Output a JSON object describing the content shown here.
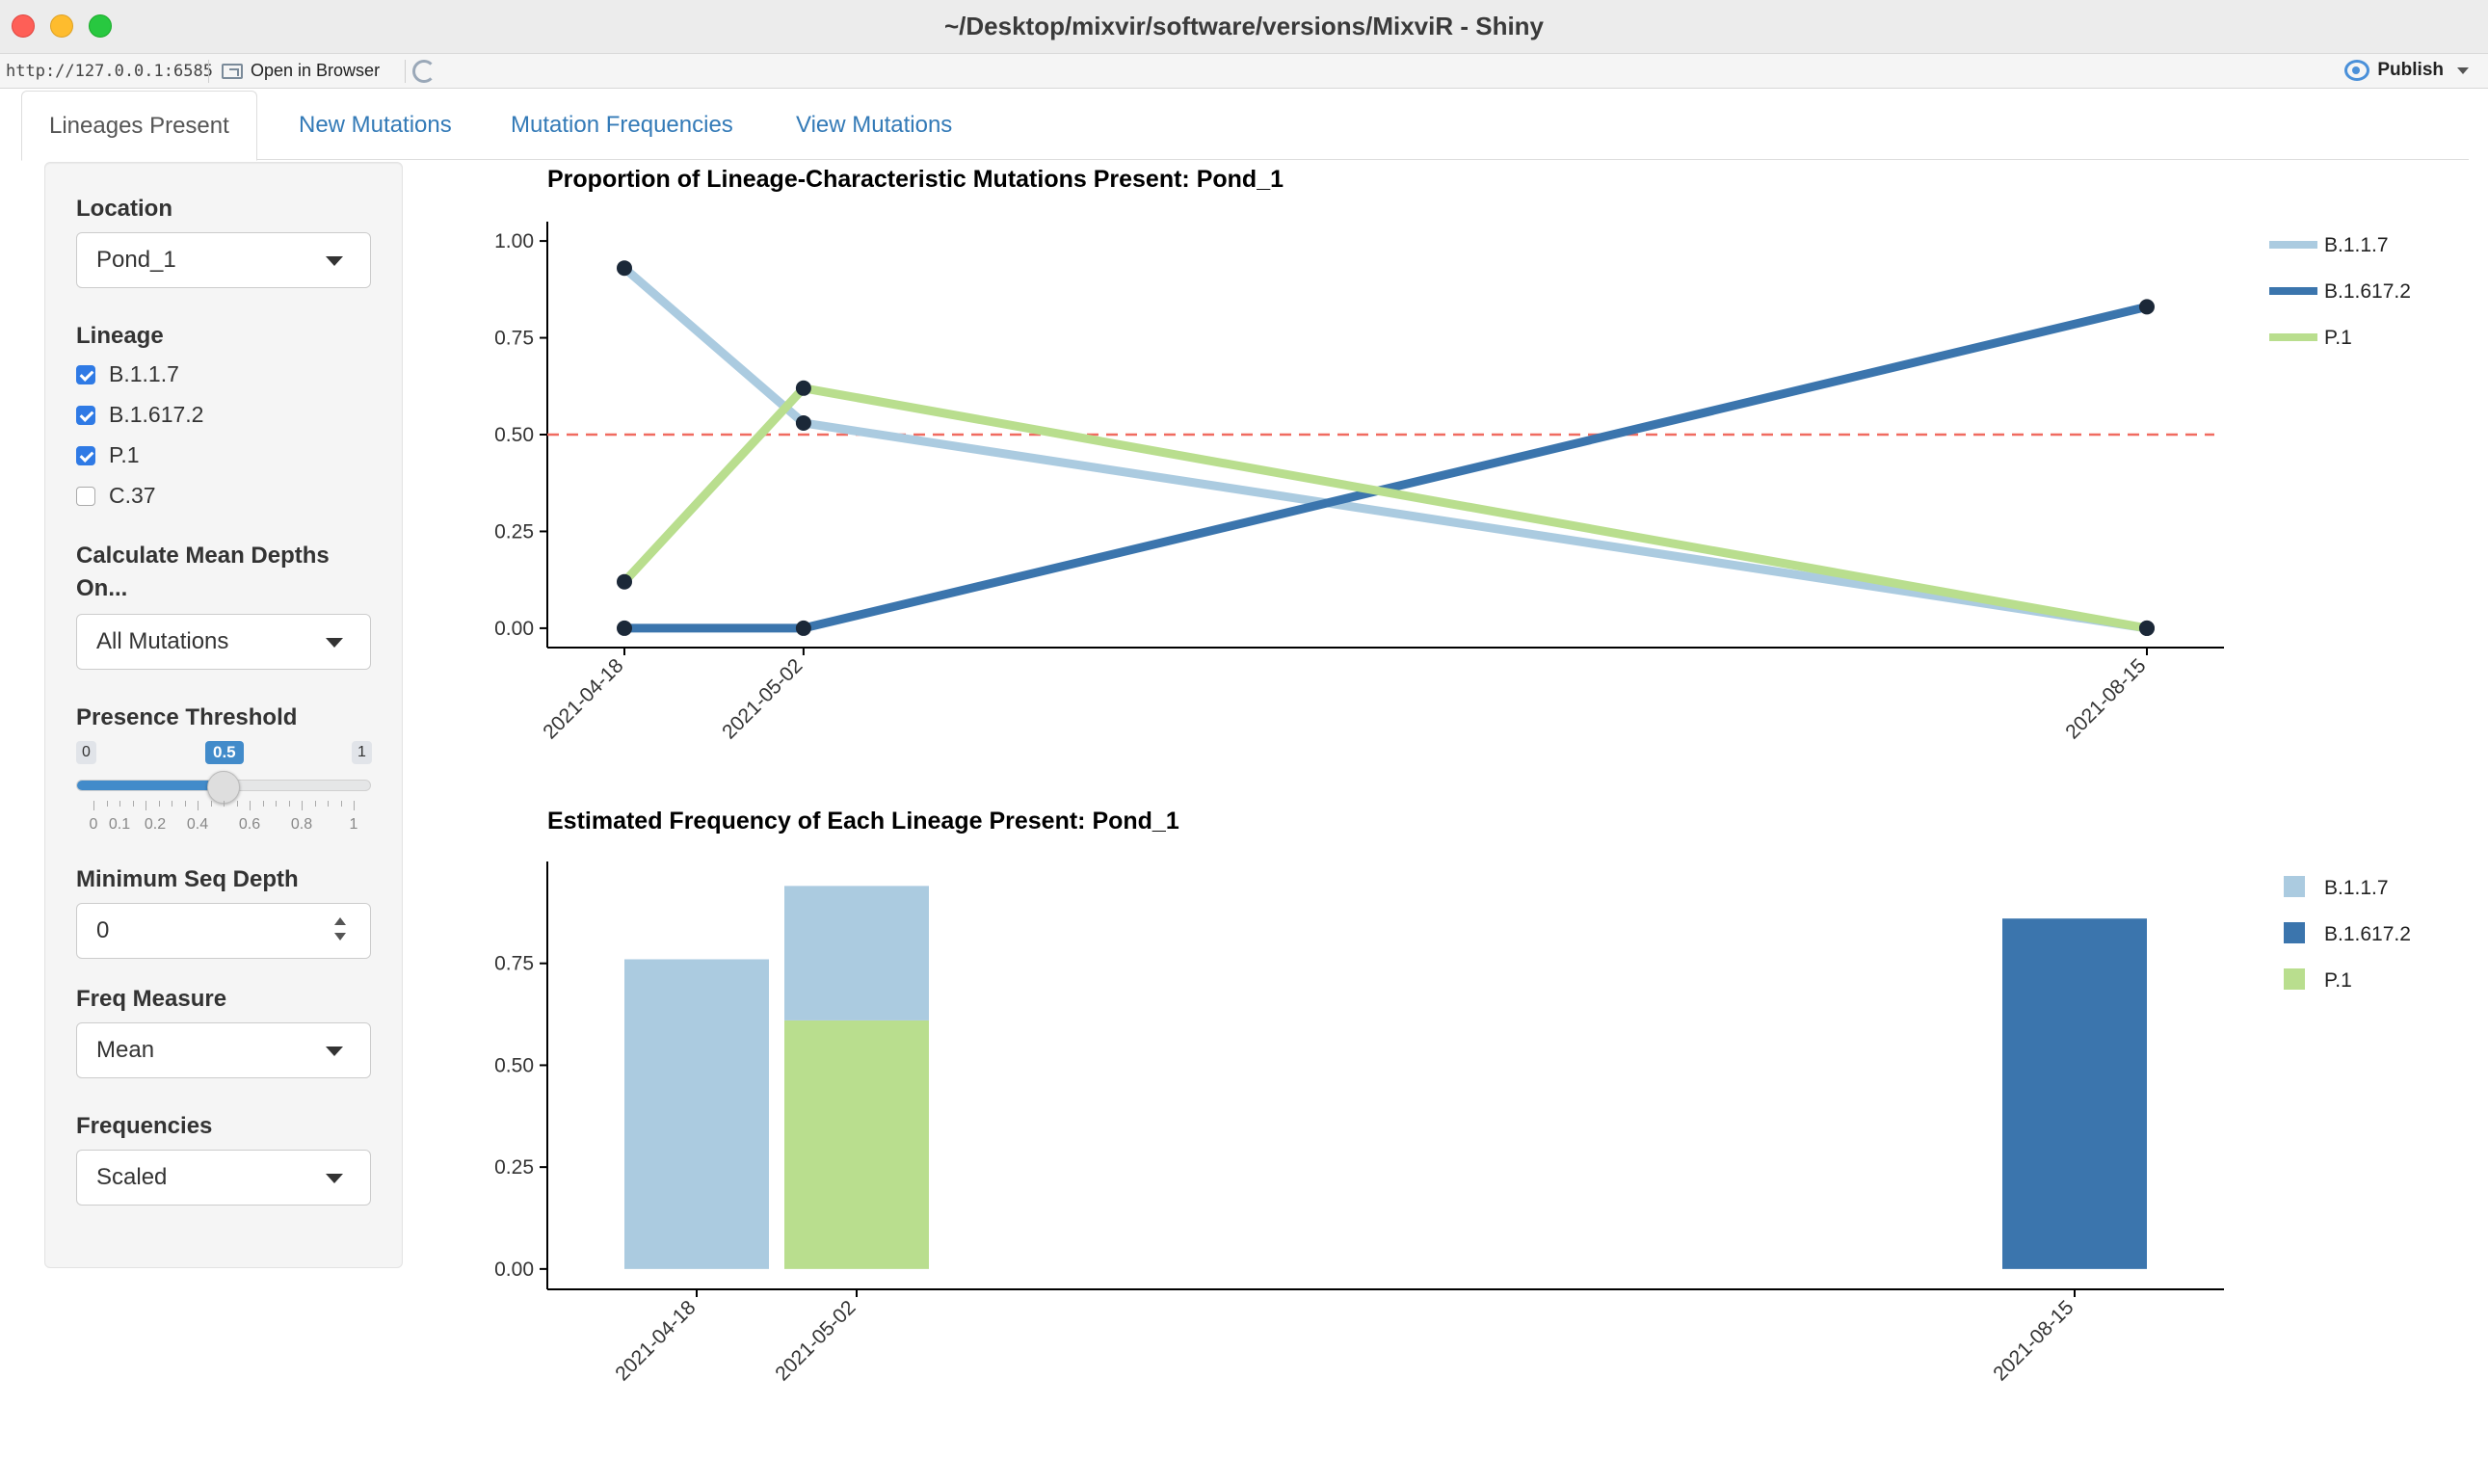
{
  "window": {
    "title": "~/Desktop/mixvir/software/versions/MixviR - Shiny"
  },
  "toolbar": {
    "url": "http://127.0.0.1:6585",
    "open_in_browser": "Open in Browser",
    "publish": "Publish"
  },
  "tabs": [
    "Lineages Present",
    "New Mutations",
    "Mutation Frequencies",
    "View Mutations"
  ],
  "sidebar": {
    "location_label": "Location",
    "location_value": "Pond_1",
    "lineage_label": "Lineage",
    "lineages": [
      {
        "label": "B.1.1.7",
        "checked": true
      },
      {
        "label": "B.1.617.2",
        "checked": true
      },
      {
        "label": "P.1",
        "checked": true
      },
      {
        "label": "C.37",
        "checked": false
      }
    ],
    "depth_label_line1": "Calculate Mean Depths",
    "depth_label_line2": "On...",
    "depth_value": "All Mutations",
    "threshold_label": "Presence Threshold",
    "threshold": {
      "min": "0",
      "max": "1",
      "value": "0.5",
      "value_num": 0.5,
      "ticks": [
        "0",
        "0.1",
        "0.2",
        "0.4",
        "0.6",
        "0.8",
        "1"
      ]
    },
    "min_depth_label": "Minimum Seq Depth",
    "min_depth_value": "0",
    "freq_measure_label": "Freq Measure",
    "freq_measure_value": "Mean",
    "frequencies_label": "Frequencies",
    "frequencies_value": "Scaled"
  },
  "colors": {
    "B.1.1.7": "#abcbe0",
    "B.1.617.2": "#3b75ad",
    "P.1": "#b9de8e",
    "threshold": "#f06b60",
    "point": "#1b2838"
  },
  "chart_data": [
    {
      "type": "line",
      "title": "Proportion of Lineage-Characteristic Mutations Present: Pond_1",
      "x": [
        "2021-04-18",
        "2021-05-02",
        "2021-08-15"
      ],
      "x_days": [
        0,
        14,
        119
      ],
      "ylim": [
        -0.05,
        1.05
      ],
      "yticks": [
        "0.00",
        "0.25",
        "0.50",
        "0.75",
        "1.00"
      ],
      "threshold": 0.5,
      "legend": "right",
      "series": [
        {
          "name": "B.1.1.7",
          "values": [
            0.93,
            0.53,
            0.0
          ]
        },
        {
          "name": "B.1.617.2",
          "values": [
            0.0,
            0.0,
            0.83
          ]
        },
        {
          "name": "P.1",
          "values": [
            0.12,
            0.62,
            0.0
          ]
        }
      ]
    },
    {
      "type": "bar",
      "stacked": true,
      "title": "Estimated Frequency of Each Lineage Present: Pond_1",
      "categories": [
        "2021-04-18",
        "2021-05-02",
        "2021-08-15"
      ],
      "x_days": [
        0,
        14,
        119
      ],
      "ylim": [
        -0.05,
        1.0
      ],
      "yticks": [
        "0.00",
        "0.25",
        "0.50",
        "0.75"
      ],
      "legend": "right",
      "series": [
        {
          "name": "P.1",
          "values": [
            0.0,
            0.61,
            0.0
          ]
        },
        {
          "name": "B.1.617.2",
          "values": [
            0.0,
            0.0,
            0.86
          ]
        },
        {
          "name": "B.1.1.7",
          "values": [
            0.76,
            0.33,
            0.0
          ]
        }
      ],
      "legend_order": [
        "B.1.1.7",
        "B.1.617.2",
        "P.1"
      ]
    }
  ]
}
